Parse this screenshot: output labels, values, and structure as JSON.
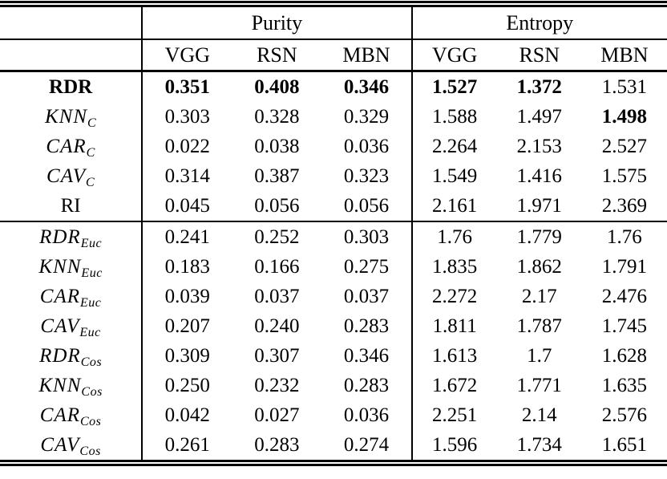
{
  "table": {
    "groups": [
      {
        "label": "Purity"
      },
      {
        "label": "Entropy"
      }
    ],
    "subheaders": [
      "VGG",
      "RSN",
      "MBN",
      "VGG",
      "RSN",
      "MBN"
    ],
    "rows": [
      {
        "label": {
          "main": "RDR",
          "sub": ""
        },
        "values": [
          "0.351",
          "0.408",
          "0.346",
          "1.527",
          "1.372",
          "1.531"
        ]
      },
      {
        "label": {
          "main": "KNN",
          "sub": "C"
        },
        "values": [
          "0.303",
          "0.328",
          "0.329",
          "1.588",
          "1.497",
          "1.498"
        ]
      },
      {
        "label": {
          "main": "CAR",
          "sub": "C"
        },
        "values": [
          "0.022",
          "0.038",
          "0.036",
          "2.264",
          "2.153",
          "2.527"
        ]
      },
      {
        "label": {
          "main": "CAV",
          "sub": "C"
        },
        "values": [
          "0.314",
          "0.387",
          "0.323",
          "1.549",
          "1.416",
          "1.575"
        ]
      },
      {
        "label": {
          "main": "RI",
          "sub": ""
        },
        "values": [
          "0.045",
          "0.056",
          "0.056",
          "2.161",
          "1.971",
          "2.369"
        ]
      },
      {
        "label": {
          "main": "RDR",
          "sub": "Euc"
        },
        "values": [
          "0.241",
          "0.252",
          "0.303",
          "1.76",
          "1.779",
          "1.76"
        ]
      },
      {
        "label": {
          "main": "KNN",
          "sub": "Euc"
        },
        "values": [
          "0.183",
          "0.166",
          "0.275",
          "1.835",
          "1.862",
          "1.791"
        ]
      },
      {
        "label": {
          "main": "CAR",
          "sub": "Euc"
        },
        "values": [
          "0.039",
          "0.037",
          "0.037",
          "2.272",
          "2.17",
          "2.476"
        ]
      },
      {
        "label": {
          "main": "CAV",
          "sub": "Euc"
        },
        "values": [
          "0.207",
          "0.240",
          "0.283",
          "1.811",
          "1.787",
          "1.745"
        ]
      },
      {
        "label": {
          "main": "RDR",
          "sub": "Cos"
        },
        "values": [
          "0.309",
          "0.307",
          "0.346",
          "1.613",
          "1.7",
          "1.628"
        ]
      },
      {
        "label": {
          "main": "KNN",
          "sub": "Cos"
        },
        "values": [
          "0.250",
          "0.232",
          "0.283",
          "1.672",
          "1.771",
          "1.635"
        ]
      },
      {
        "label": {
          "main": "CAR",
          "sub": "Cos"
        },
        "values": [
          "0.042",
          "0.027",
          "0.036",
          "2.251",
          "2.14",
          "2.576"
        ]
      },
      {
        "label": {
          "main": "CAV",
          "sub": "Cos"
        },
        "values": [
          "0.261",
          "0.283",
          "0.274",
          "1.596",
          "1.734",
          "1.651"
        ]
      }
    ]
  }
}
